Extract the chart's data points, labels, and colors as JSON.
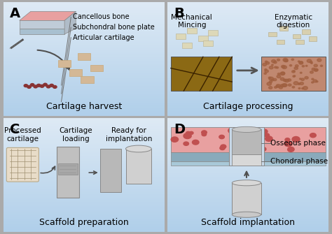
{
  "bg_color": "#c8dcea",
  "bg_gradient_top": "#ddeaf5",
  "bg_gradient_bottom": "#a8c8e0",
  "border_color": "#888888",
  "panel_titles": [
    "Cartilage harvest",
    "Cartilage processing",
    "Scaffold preparation",
    "Scaffold implantation"
  ],
  "panel_labels": [
    "A",
    "B",
    "C",
    "D"
  ],
  "panel_label_fontsize": 14,
  "title_fontsize": 9,
  "label_fontsize": 7.5,
  "bone_pink": "#e8a0a0",
  "bone_dark": "#c06060",
  "cartilage_beige": "#d4b896",
  "cartilage_tan": "#c8a878",
  "scaffold_gray": "#b8b8b8",
  "scaffold_dark": "#909090",
  "subchondral_blue": "#8cb4c8",
  "arrow_color": "#505050",
  "text_color": "#222222",
  "annotation_line_color": "#707070",
  "panel_A_labels": [
    "Cancellous bone",
    "Subchondral bone plate",
    "Articular cartilage"
  ],
  "panel_B_left_label": "Mechanical\nMincing",
  "panel_B_right_label": "Enzymatic\ndigestion",
  "panel_B_caption": "Cartilage processing",
  "panel_C_labels": [
    "Processed\ncartilage",
    "Cartilage\nloading",
    "Ready for\nimplantation"
  ],
  "panel_D_labels": [
    "Osseous phase",
    "Chondral phase"
  ],
  "panel_D_caption": "Scaffold implantation"
}
